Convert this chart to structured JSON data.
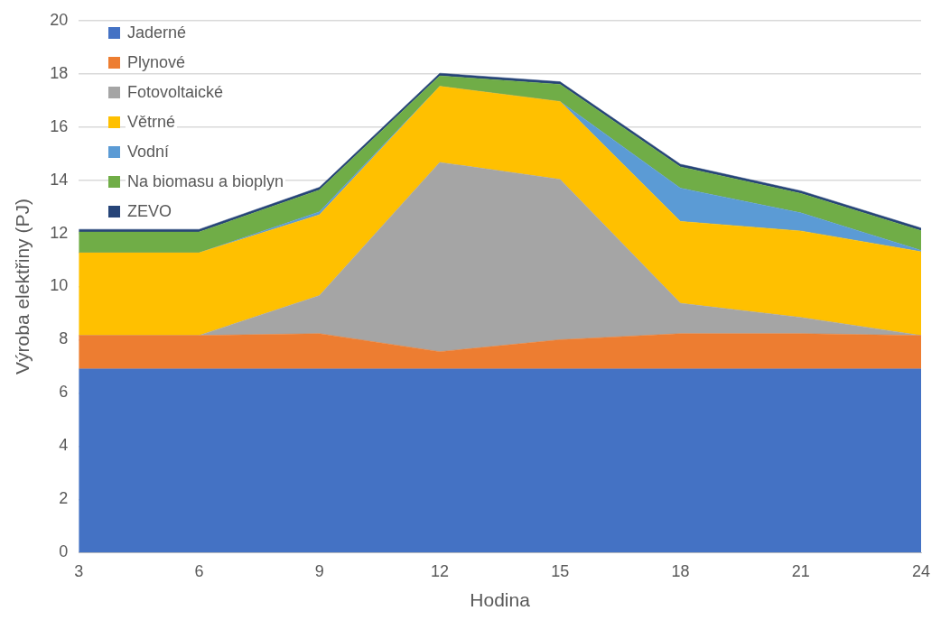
{
  "chart_data": {
    "type": "area",
    "xlabel": "Hodina",
    "ylabel": "Výroba elektřiny (PJ)",
    "x": [
      3,
      6,
      9,
      12,
      15,
      18,
      21,
      24
    ],
    "xlim": [
      3,
      24
    ],
    "xticks": [
      3,
      6,
      9,
      12,
      15,
      18,
      21,
      24
    ],
    "ylim": [
      0,
      20
    ],
    "yticks": [
      0,
      2,
      4,
      6,
      8,
      10,
      12,
      14,
      16,
      18,
      20
    ],
    "stacked": true,
    "grid": "y",
    "legend": "top left",
    "series": [
      {
        "name": "Jaderné",
        "color": "#4472c4",
        "values": [
          6.9,
          6.9,
          6.9,
          6.9,
          6.9,
          6.9,
          6.9,
          6.9
        ]
      },
      {
        "name": "Plynové",
        "color": "#ed7d31",
        "values": [
          1.26,
          1.26,
          1.33,
          0.65,
          1.1,
          1.33,
          1.33,
          1.26
        ]
      },
      {
        "name": "Fotovoltaické",
        "color": "#a5a5a5",
        "values": [
          0,
          0,
          1.43,
          7.12,
          6.03,
          1.14,
          0.61,
          0
        ]
      },
      {
        "name": "Větrné",
        "color": "#ffc000",
        "values": [
          3.11,
          3.11,
          3.04,
          2.86,
          2.93,
          3.08,
          3.25,
          3.15
        ]
      },
      {
        "name": "Vodní",
        "color": "#5b9bd5",
        "values": [
          0,
          0,
          0.11,
          0,
          0,
          1.25,
          0.68,
          0.05
        ]
      },
      {
        "name": "Na biomasu a bioplyn",
        "color": "#70ad47",
        "values": [
          0.78,
          0.78,
          0.82,
          0.39,
          0.64,
          0.8,
          0.73,
          0.74
        ]
      },
      {
        "name": "ZEVO",
        "color": "#264478",
        "values": [
          0.1,
          0.1,
          0.1,
          0.1,
          0.1,
          0.1,
          0.1,
          0.1
        ]
      }
    ]
  }
}
